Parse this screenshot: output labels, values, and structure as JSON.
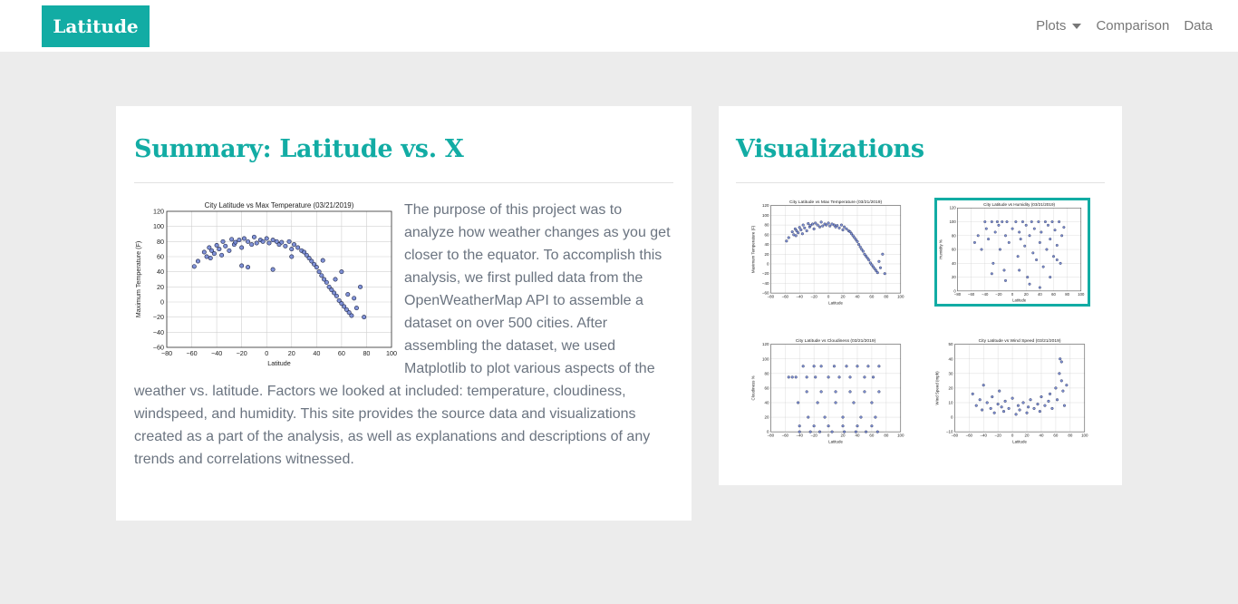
{
  "nav": {
    "brand": "Latitude",
    "links": [
      {
        "label": "Plots",
        "dropdown": true
      },
      {
        "label": "Comparison",
        "dropdown": false
      },
      {
        "label": "Data",
        "dropdown": false
      }
    ]
  },
  "colors": {
    "accent": "#12aca4",
    "background": "#ececec",
    "marker": "#6a7fd0",
    "marker_edge": "#1a2140"
  },
  "summary": {
    "title": "Summary: Latitude vs. X",
    "text": "The purpose of this project was to analyze how weather changes as you get closer to the equator. To accomplish this analysis, we first pulled data from the OpenWeatherMap API to assemble a dataset on over 500 cities. After assembling the dataset, we used Matplotlib to plot various aspects of the weather vs. latitude. Factors we looked at included: temperature, cloudiness, windspeed, and humidity. This site provides the source data and visualizations created as a part of the analysis, as well as explanations and descriptions of any trends and correlations witnessed."
  },
  "visualizations": {
    "title": "Visualizations",
    "selected_index": 1
  },
  "chart_data": [
    {
      "id": "summary-temperature",
      "type": "scatter",
      "title": "City Latitude vs Max Temperature (03/21/2019)",
      "xlabel": "Latitude",
      "ylabel": "Maximum Temperature (F)",
      "xlim": [
        -80,
        100
      ],
      "ylim": [
        -60,
        120
      ],
      "xticks": [
        -80,
        -60,
        -40,
        -20,
        0,
        20,
        40,
        60,
        80,
        100
      ],
      "yticks": [
        -60,
        -40,
        -20,
        0,
        20,
        40,
        60,
        80,
        100,
        120
      ],
      "grid": true,
      "x": [
        -58,
        -55,
        -50,
        -48,
        -46,
        -45,
        -44,
        -42,
        -40,
        -38,
        -36,
        -35,
        -33,
        -30,
        -28,
        -26,
        -25,
        -22,
        -20,
        -18,
        -15,
        -12,
        -10,
        -8,
        -5,
        -3,
        0,
        2,
        5,
        8,
        10,
        12,
        15,
        18,
        20,
        22,
        25,
        28,
        30,
        32,
        34,
        36,
        38,
        40,
        42,
        44,
        46,
        48,
        50,
        52,
        54,
        56,
        58,
        60,
        62,
        64,
        66,
        68,
        70,
        72,
        75,
        78,
        -20,
        -15,
        5,
        20,
        45,
        55,
        60,
        65
      ],
      "y": [
        47,
        54,
        66,
        60,
        72,
        58,
        68,
        64,
        75,
        70,
        62,
        80,
        74,
        68,
        83,
        76,
        79,
        82,
        72,
        84,
        80,
        76,
        86,
        78,
        82,
        80,
        84,
        78,
        82,
        80,
        76,
        79,
        74,
        80,
        70,
        76,
        72,
        68,
        66,
        62,
        58,
        54,
        50,
        46,
        40,
        35,
        30,
        26,
        20,
        16,
        12,
        8,
        2,
        -2,
        -6,
        -10,
        -14,
        -18,
        5,
        -8,
        20,
        -20,
        48,
        46,
        43,
        60,
        55,
        30,
        40,
        10
      ]
    },
    {
      "id": "thumb-temperature",
      "type": "scatter",
      "title": "City Latitude vs Max Temperature (03/21/2019)",
      "xlabel": "Latitude",
      "ylabel": "Maximum Temperature (F)",
      "xlim": [
        -80,
        100
      ],
      "ylim": [
        -60,
        120
      ],
      "xticks": [
        -80,
        -60,
        -40,
        -20,
        0,
        20,
        40,
        60,
        80,
        100
      ],
      "yticks": [
        -60,
        -40,
        -20,
        0,
        20,
        40,
        60,
        80,
        100,
        120
      ],
      "grid": true,
      "x": [
        -58,
        -55,
        -50,
        -48,
        -46,
        -45,
        -44,
        -42,
        -40,
        -38,
        -36,
        -35,
        -33,
        -30,
        -28,
        -26,
        -25,
        -22,
        -20,
        -18,
        -15,
        -12,
        -10,
        -8,
        -5,
        -3,
        0,
        2,
        5,
        8,
        10,
        12,
        15,
        18,
        20,
        22,
        25,
        28,
        30,
        32,
        34,
        36,
        38,
        40,
        42,
        44,
        46,
        48,
        50,
        52,
        54,
        56,
        58,
        60,
        62,
        64,
        66,
        68,
        70,
        72,
        75,
        78
      ],
      "y": [
        47,
        54,
        66,
        60,
        72,
        58,
        68,
        64,
        75,
        70,
        62,
        80,
        74,
        68,
        83,
        76,
        79,
        82,
        72,
        84,
        80,
        76,
        86,
        78,
        82,
        80,
        84,
        78,
        82,
        80,
        76,
        79,
        74,
        80,
        70,
        76,
        72,
        68,
        66,
        62,
        58,
        54,
        50,
        46,
        40,
        35,
        30,
        26,
        20,
        16,
        12,
        8,
        2,
        -2,
        -6,
        -10,
        -14,
        -18,
        5,
        -8,
        20,
        -20
      ]
    },
    {
      "id": "thumb-humidity",
      "type": "scatter",
      "title": "City Latitude vs Humidity (03/21/2019)",
      "xlabel": "Latitude",
      "ylabel": "Humidity %",
      "xlim": [
        -80,
        100
      ],
      "ylim": [
        0,
        120
      ],
      "xticks": [
        -80,
        -60,
        -40,
        -20,
        0,
        20,
        40,
        60,
        80,
        100
      ],
      "yticks": [
        0,
        20,
        40,
        60,
        80,
        100,
        120
      ],
      "grid": true,
      "x": [
        -55,
        -50,
        -45,
        -40,
        -38,
        -35,
        -30,
        -28,
        -25,
        -22,
        -20,
        -18,
        -15,
        -12,
        -10,
        -8,
        -5,
        0,
        5,
        8,
        10,
        12,
        15,
        18,
        20,
        22,
        25,
        28,
        30,
        32,
        35,
        38,
        40,
        42,
        45,
        48,
        50,
        52,
        55,
        58,
        60,
        62,
        65,
        68,
        70,
        72,
        75,
        -30,
        -10,
        10,
        25,
        40,
        55,
        65
      ],
      "y": [
        70,
        80,
        60,
        100,
        90,
        75,
        100,
        40,
        85,
        100,
        95,
        60,
        100,
        30,
        80,
        100,
        70,
        90,
        100,
        50,
        85,
        75,
        100,
        65,
        95,
        20,
        80,
        100,
        55,
        90,
        45,
        100,
        70,
        85,
        35,
        100,
        60,
        95,
        75,
        100,
        50,
        88,
        66,
        100,
        40,
        80,
        92,
        25,
        15,
        30,
        10,
        5,
        20,
        45
      ]
    },
    {
      "id": "thumb-cloudiness",
      "type": "scatter",
      "title": "City Latitude vs Cloudiness (03/21/2019)",
      "xlabel": "Latitude",
      "ylabel": "Cloudiness %",
      "xlim": [
        -80,
        100
      ],
      "ylim": [
        0,
        120
      ],
      "xticks": [
        -80,
        -60,
        -40,
        -20,
        0,
        20,
        40,
        60,
        80,
        100
      ],
      "yticks": [
        0,
        20,
        40,
        60,
        80,
        100,
        120
      ],
      "grid": true,
      "x": [
        -55,
        -50,
        -45,
        -42,
        -40,
        -35,
        -30,
        -28,
        -25,
        -20,
        -18,
        -15,
        -12,
        -10,
        -5,
        0,
        5,
        8,
        10,
        15,
        20,
        22,
        25,
        30,
        35,
        38,
        40,
        45,
        50,
        52,
        55,
        60,
        62,
        65,
        68,
        70,
        -40,
        -20,
        0,
        20,
        40,
        60,
        -30,
        -10,
        10,
        30,
        50,
        70
      ],
      "y": [
        75,
        75,
        75,
        40,
        0,
        90,
        75,
        20,
        0,
        90,
        75,
        40,
        0,
        90,
        20,
        75,
        0,
        90,
        40,
        75,
        20,
        0,
        90,
        75,
        40,
        0,
        90,
        20,
        75,
        0,
        90,
        40,
        75,
        20,
        0,
        90,
        8,
        8,
        8,
        8,
        8,
        8,
        55,
        55,
        55,
        55,
        55,
        55
      ]
    },
    {
      "id": "thumb-windspeed",
      "type": "scatter",
      "title": "City Latitude vs Wind Speed (03/21/2019)",
      "xlabel": "Latitude",
      "ylabel": "Wind Speed (mph)",
      "xlim": [
        -80,
        100
      ],
      "ylim": [
        -10,
        50
      ],
      "xticks": [
        -80,
        -60,
        -40,
        -20,
        0,
        20,
        40,
        60,
        80,
        100
      ],
      "yticks": [
        -10,
        0,
        10,
        20,
        30,
        40,
        50
      ],
      "grid": true,
      "x": [
        -55,
        -50,
        -45,
        -42,
        -40,
        -35,
        -30,
        -28,
        -25,
        -20,
        -18,
        -15,
        -12,
        -10,
        -5,
        0,
        5,
        8,
        10,
        15,
        20,
        22,
        25,
        30,
        35,
        38,
        40,
        45,
        50,
        52,
        55,
        60,
        62,
        65,
        68,
        70,
        72,
        75,
        66,
        68
      ],
      "y": [
        16,
        8,
        12,
        5,
        22,
        10,
        6,
        14,
        3,
        9,
        18,
        7,
        4,
        11,
        6,
        13,
        2,
        8,
        5,
        10,
        3,
        7,
        12,
        6,
        9,
        4,
        14,
        8,
        11,
        16,
        6,
        20,
        12,
        30,
        38,
        18,
        8,
        22,
        40,
        25
      ]
    }
  ]
}
